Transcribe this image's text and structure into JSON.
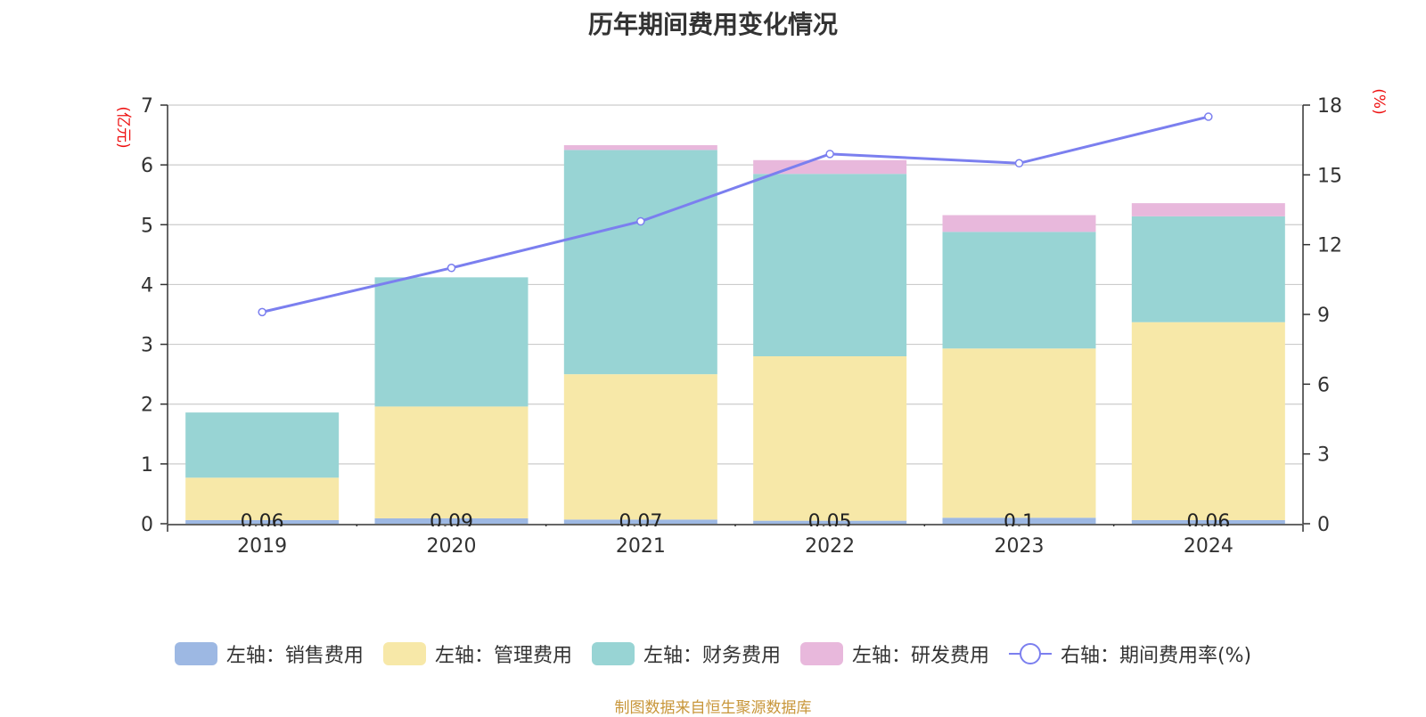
{
  "chart_data": {
    "type": "bar",
    "title": "历年期间费用变化情况",
    "categories": [
      "2019",
      "2020",
      "2021",
      "2022",
      "2023",
      "2024"
    ],
    "series": [
      {
        "name": "左轴：销售费用",
        "axis": "left",
        "type": "bar",
        "color": "#9db8e3",
        "values": [
          0.06,
          0.09,
          0.07,
          0.05,
          0.1,
          0.06
        ],
        "labels": [
          "0.06",
          "0.09",
          "0.07",
          "0.05",
          "0.1",
          "0.06"
        ]
      },
      {
        "name": "左轴：管理费用",
        "axis": "left",
        "type": "bar",
        "color": "#f7e8a8",
        "values": [
          0.71,
          1.87,
          2.43,
          2.75,
          2.83,
          3.31
        ]
      },
      {
        "name": "左轴：财务费用",
        "axis": "left",
        "type": "bar",
        "color": "#98d4d4",
        "values": [
          1.09,
          2.16,
          3.75,
          3.05,
          1.95,
          1.77
        ]
      },
      {
        "name": "左轴：研发费用",
        "axis": "left",
        "type": "bar",
        "color": "#e8b8dc",
        "values": [
          0.0,
          0.0,
          0.08,
          0.23,
          0.28,
          0.22
        ]
      },
      {
        "name": "右轴：期间费用率(%)",
        "axis": "right",
        "type": "line",
        "color": "#7b7fef",
        "values": [
          9.1,
          11.0,
          13.0,
          15.9,
          15.5,
          17.5
        ]
      }
    ],
    "left_axis": {
      "label": "(亿元)",
      "min": 0,
      "max": 7,
      "ticks": [
        "0",
        "1",
        "2",
        "3",
        "4",
        "5",
        "6",
        "7"
      ]
    },
    "right_axis": {
      "label": "(%)",
      "min": 0,
      "max": 18,
      "ticks": [
        "0",
        "3",
        "6",
        "9",
        "12",
        "15",
        "18"
      ]
    },
    "grid": true,
    "legend_position": "bottom",
    "source": "制图数据来自恒生聚源数据库"
  }
}
